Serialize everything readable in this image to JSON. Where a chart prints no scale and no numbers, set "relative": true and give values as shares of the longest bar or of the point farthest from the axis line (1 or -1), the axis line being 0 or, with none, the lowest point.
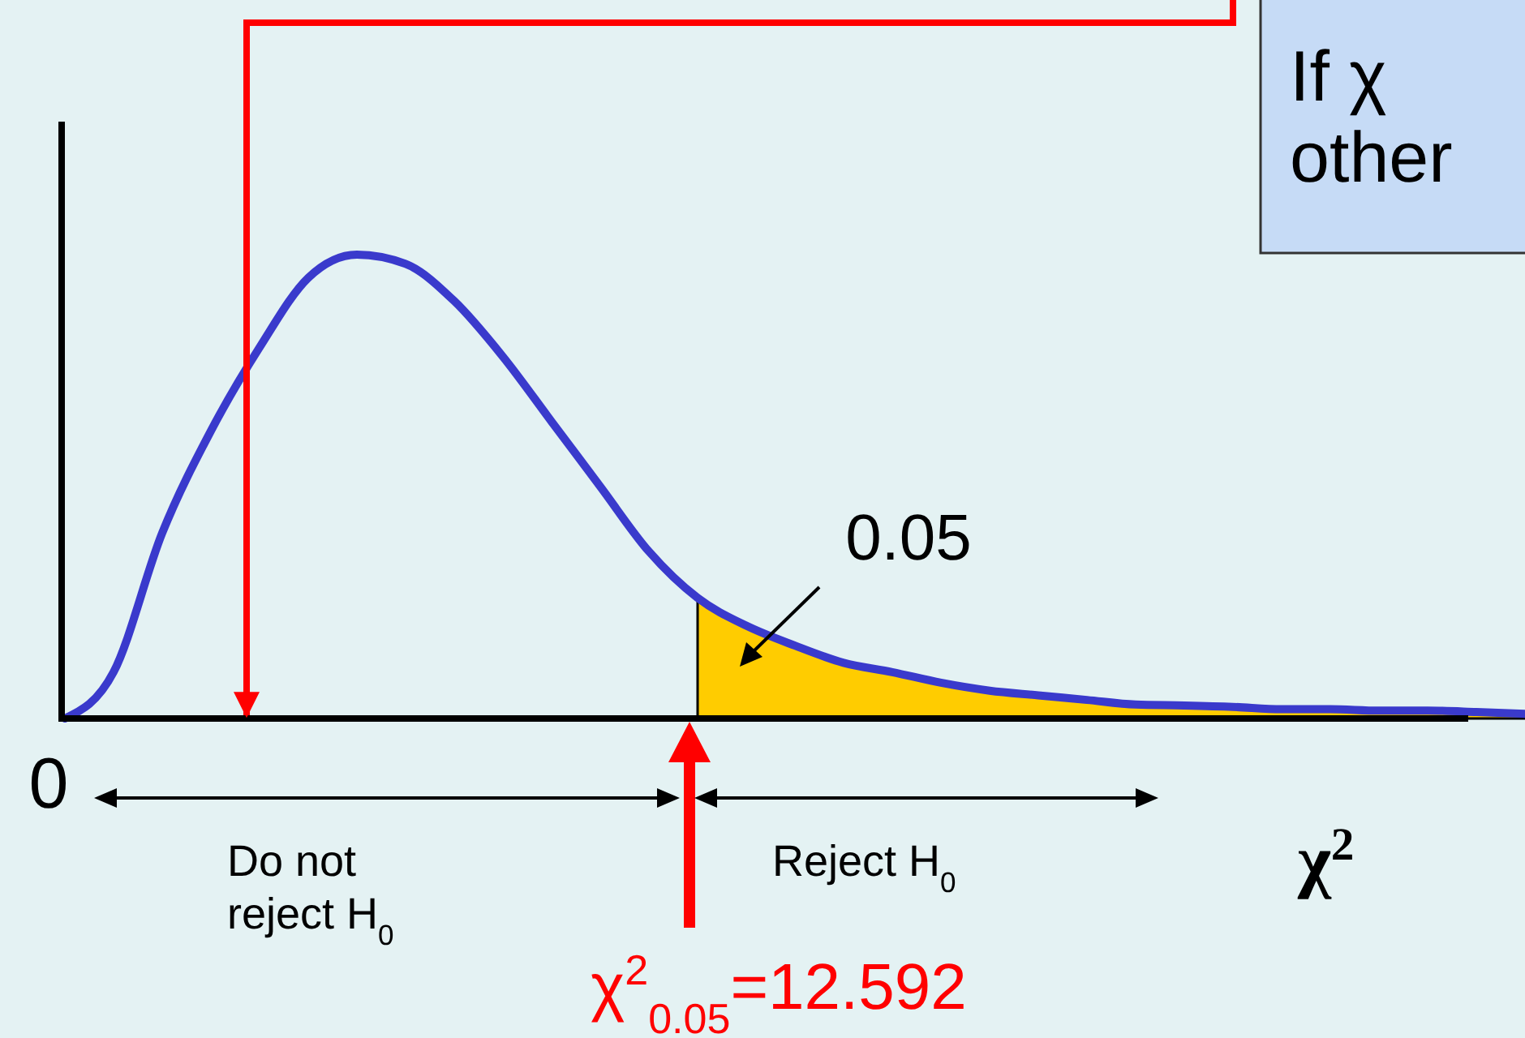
{
  "chart_data": {
    "type": "line",
    "relative": true,
    "xlabel": "χ$^{2}$",
    "categories": [
      null,
      null,
      null,
      null,
      null,
      null,
      null,
      null,
      null,
      null,
      null,
      null,
      null,
      null,
      null,
      null,
      null,
      null,
      null,
      null,
      null,
      null,
      null,
      null,
      null,
      null,
      null,
      null,
      null,
      null,
      null
    ],
    "series": [
      {
        "type": "area",
        "color": "#ffcc00",
        "values": [
          null,
          null,
          null,
          null,
          null,
          null,
          null,
          null,
          null,
          null,
          null,
          null,
          null,
          0.26,
          0.2,
          0.157,
          0.12,
          0.1,
          0.077,
          0.06,
          0.05,
          0.04,
          0.03,
          0.028,
          0.025,
          0.02,
          0.02,
          0.017,
          0.017,
          0.014,
          0.01
        ]
      },
      {
        "type": "line",
        "color": "#3a3acc",
        "values": [
          0,
          0.1,
          0.4,
          0.62,
          0.8,
          0.95,
          1,
          0.98,
          0.9,
          0.78,
          0.64,
          0.5,
          0.36,
          0.26,
          0.2,
          0.157,
          0.12,
          0.1,
          0.077,
          0.06,
          0.05,
          0.04,
          0.03,
          0.028,
          0.025,
          0.02,
          0.02,
          0.017,
          0.017,
          0.014,
          0.01
        ]
      }
    ],
    "annotations": [
      "0",
      "0.05",
      "Do not\nreject H$_{0}$",
      "Reject H$_{0}$",
      "χ$^{2}$$_{0.05}$=12.592",
      "If χ",
      "other"
    ]
  }
}
